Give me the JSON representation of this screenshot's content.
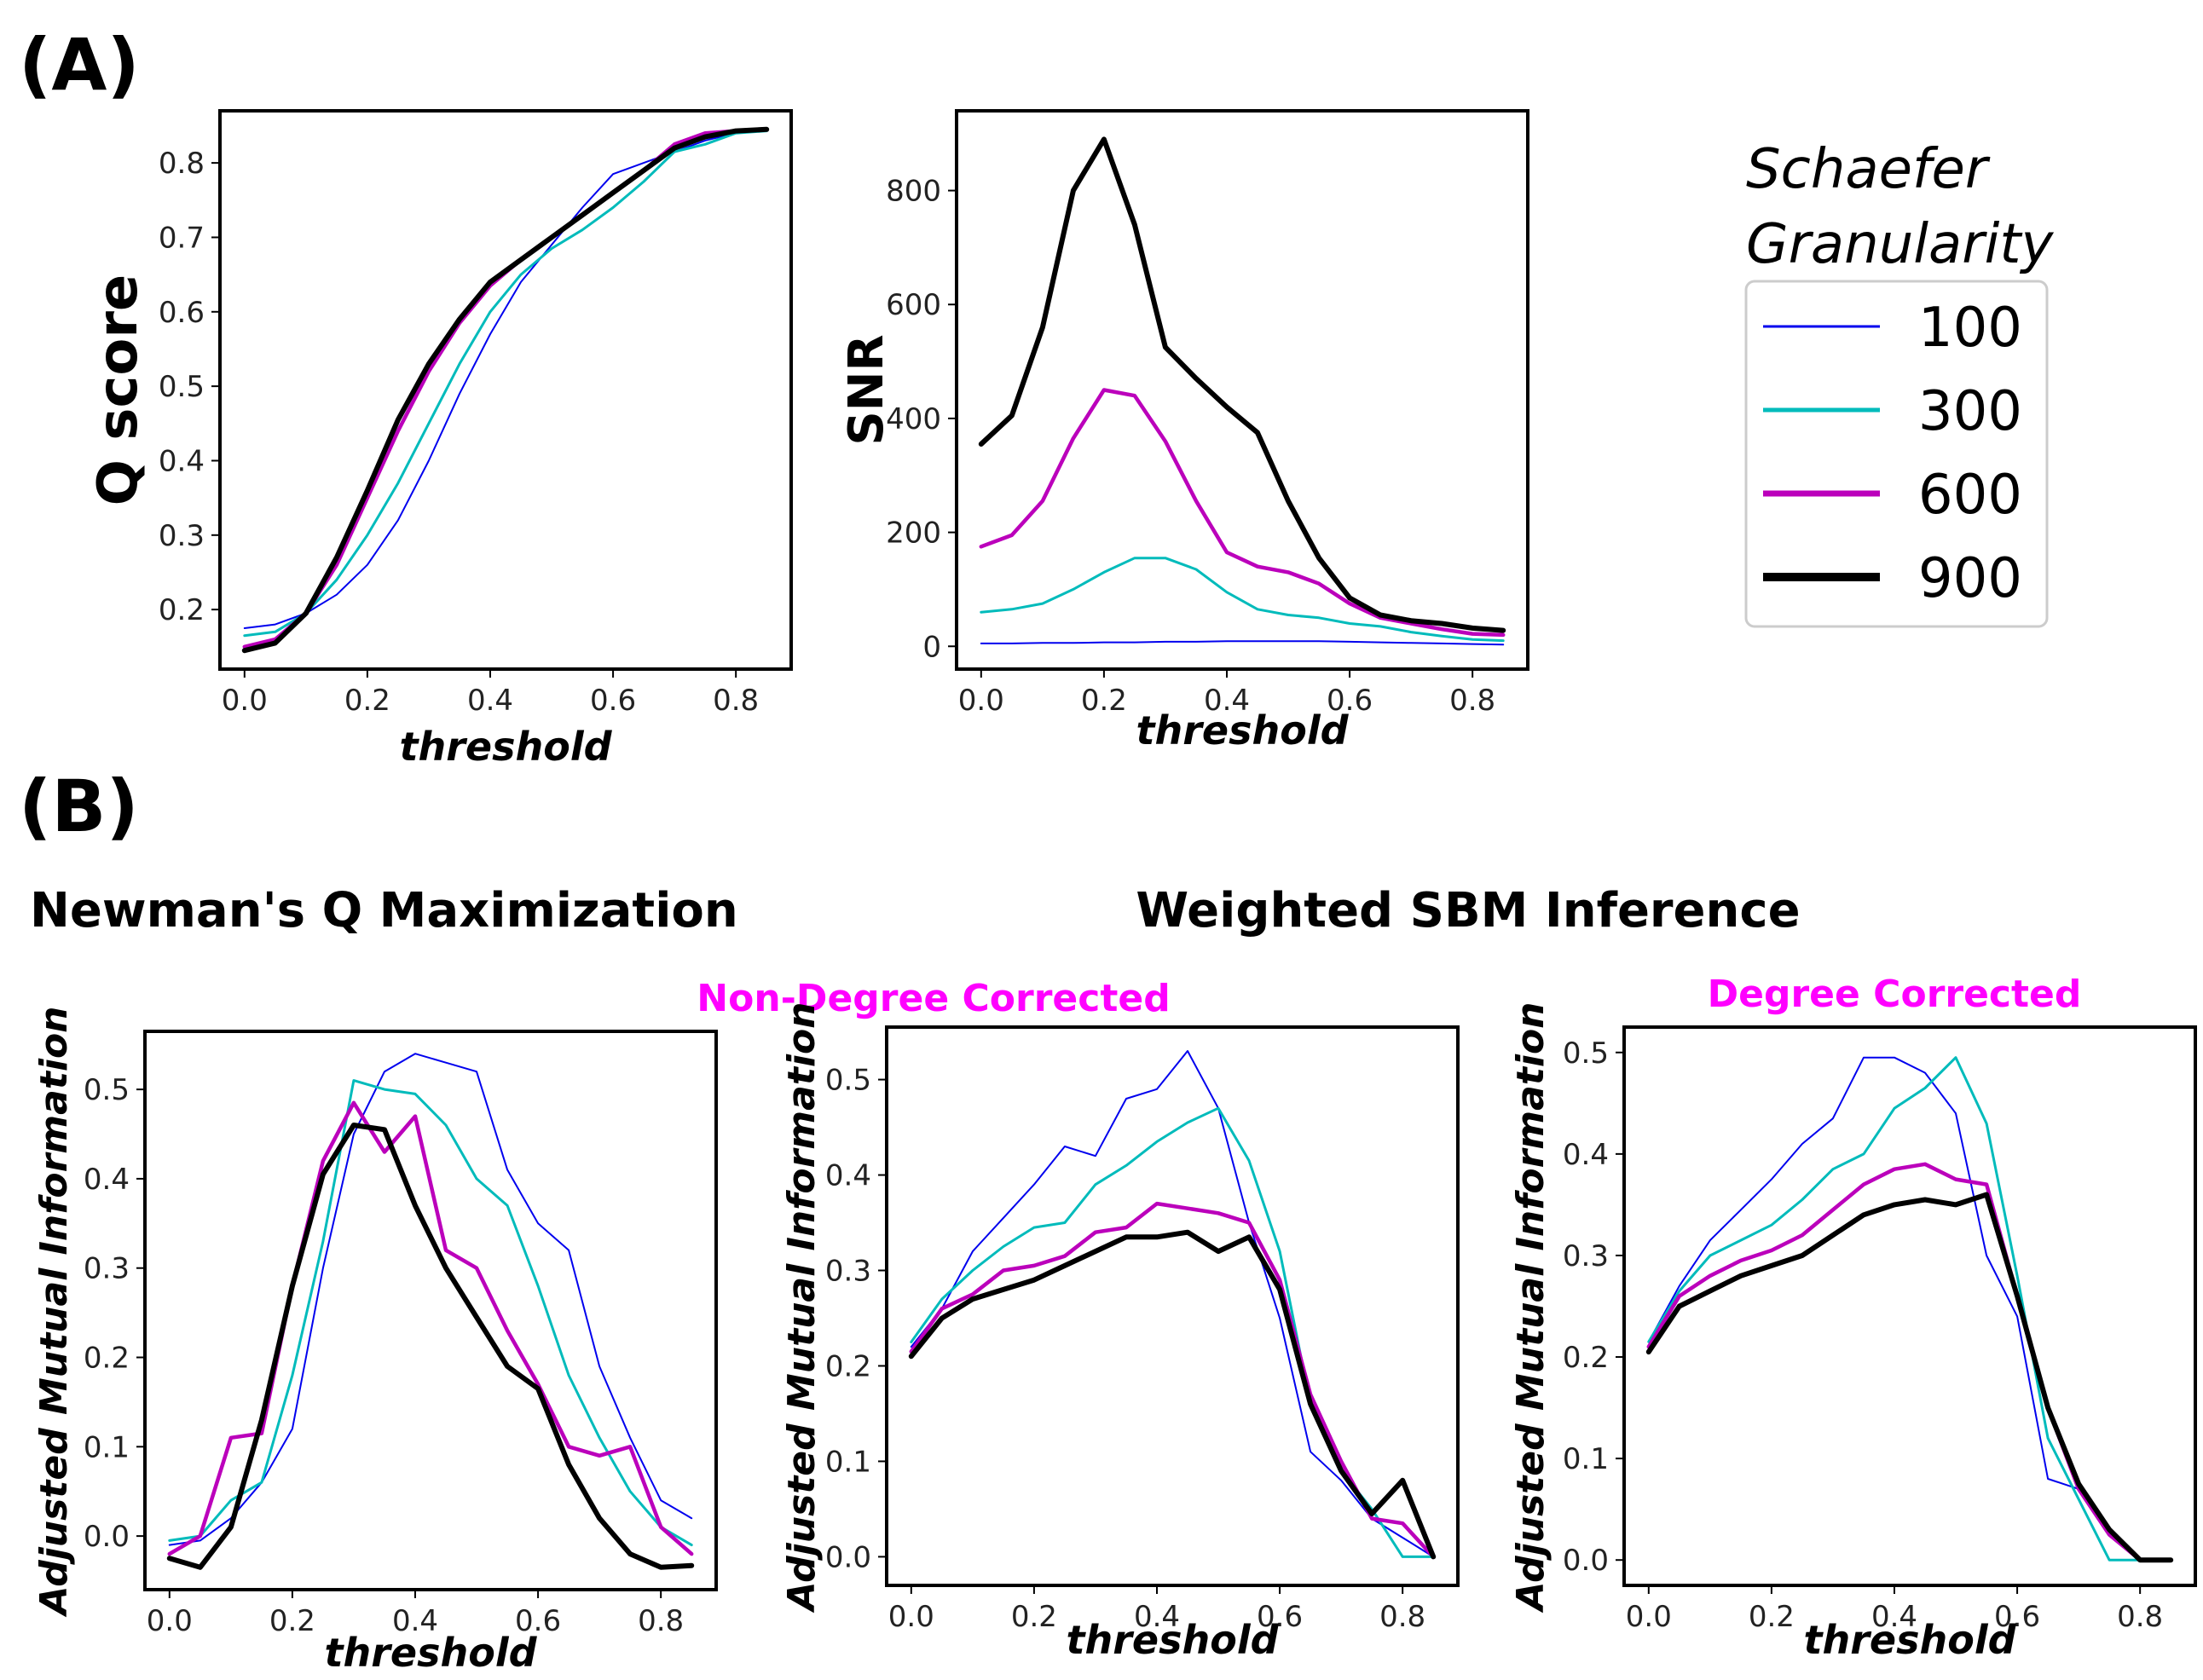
{
  "figure": {
    "label_a": "(A)",
    "label_b": "(B)",
    "title_newman": "Newman's Q Maximization",
    "title_sbm": "Weighted SBM Inference",
    "subtitle_ndc": "Non-Degree Corrected",
    "subtitle_dc": "Degree Corrected"
  },
  "legend": {
    "title_line1": "Schaefer",
    "title_line2": "Granularity",
    "entries": [
      {
        "label": "100",
        "color": "#0000ee"
      },
      {
        "label": "300",
        "color": "#00bbbb"
      },
      {
        "label": "600",
        "color": "#bb00bb"
      },
      {
        "label": "900",
        "color": "#000000"
      }
    ]
  },
  "series_colors": [
    "#0000ee",
    "#00bbbb",
    "#bb00bb",
    "#000000"
  ],
  "chart_data": [
    {
      "id": "qscore",
      "type": "line",
      "title": "",
      "xlabel": "threshold",
      "ylabel": "Q score",
      "xlim": [
        -0.04,
        0.89
      ],
      "ylim": [
        0.12,
        0.87
      ],
      "xticks": [
        0.0,
        0.2,
        0.4,
        0.6,
        0.8
      ],
      "xtick_labels": [
        "0.0",
        "0.2",
        "0.4",
        "0.6",
        "0.8"
      ],
      "yticks": [
        0.2,
        0.3,
        0.4,
        0.5,
        0.6,
        0.7,
        0.8
      ],
      "ytick_labels": [
        "0.2",
        "0.3",
        "0.4",
        "0.5",
        "0.6",
        "0.7",
        "0.8"
      ],
      "x": [
        0.0,
        0.05,
        0.1,
        0.15,
        0.2,
        0.25,
        0.3,
        0.35,
        0.4,
        0.45,
        0.5,
        0.55,
        0.6,
        0.65,
        0.7,
        0.75,
        0.8,
        0.85
      ],
      "series": [
        {
          "name": "100",
          "values": [
            0.175,
            0.18,
            0.195,
            0.22,
            0.26,
            0.32,
            0.4,
            0.49,
            0.57,
            0.64,
            0.69,
            0.74,
            0.785,
            0.8,
            0.815,
            0.83,
            0.84,
            0.843
          ]
        },
        {
          "name": "300",
          "values": [
            0.165,
            0.17,
            0.195,
            0.24,
            0.3,
            0.37,
            0.45,
            0.53,
            0.6,
            0.65,
            0.685,
            0.71,
            0.74,
            0.775,
            0.815,
            0.825,
            0.84,
            0.843
          ]
        },
        {
          "name": "600",
          "values": [
            0.15,
            0.16,
            0.195,
            0.26,
            0.35,
            0.44,
            0.52,
            0.585,
            0.635,
            0.67,
            0.7,
            0.73,
            0.76,
            0.79,
            0.825,
            0.84,
            0.843,
            0.845
          ]
        },
        {
          "name": "900",
          "values": [
            0.145,
            0.155,
            0.195,
            0.27,
            0.36,
            0.455,
            0.53,
            0.59,
            0.64,
            0.67,
            0.7,
            0.73,
            0.76,
            0.79,
            0.82,
            0.835,
            0.843,
            0.845
          ]
        }
      ]
    },
    {
      "id": "snr",
      "type": "line",
      "title": "",
      "xlabel": "threshold",
      "ylabel": "SNR",
      "xlim": [
        -0.04,
        0.89
      ],
      "ylim": [
        -40,
        940
      ],
      "xticks": [
        0.0,
        0.2,
        0.4,
        0.6,
        0.8
      ],
      "xtick_labels": [
        "0.0",
        "0.2",
        "0.4",
        "0.6",
        "0.8"
      ],
      "yticks": [
        0,
        200,
        400,
        600,
        800
      ],
      "ytick_labels": [
        "0",
        "200",
        "400",
        "600",
        "800"
      ],
      "x": [
        0.0,
        0.05,
        0.1,
        0.15,
        0.2,
        0.25,
        0.3,
        0.35,
        0.4,
        0.45,
        0.5,
        0.55,
        0.6,
        0.65,
        0.7,
        0.75,
        0.8,
        0.85
      ],
      "series": [
        {
          "name": "100",
          "values": [
            5,
            5,
            6,
            6,
            7,
            7,
            8,
            8,
            9,
            9,
            9,
            9,
            8,
            7,
            6,
            5,
            4,
            3
          ]
        },
        {
          "name": "300",
          "values": [
            60,
            65,
            75,
            100,
            130,
            155,
            155,
            135,
            95,
            65,
            55,
            50,
            40,
            35,
            25,
            18,
            12,
            10
          ]
        },
        {
          "name": "600",
          "values": [
            175,
            195,
            255,
            365,
            450,
            440,
            360,
            255,
            165,
            140,
            130,
            110,
            75,
            50,
            40,
            30,
            22,
            20
          ]
        },
        {
          "name": "900",
          "values": [
            355,
            405,
            560,
            800,
            890,
            740,
            525,
            470,
            420,
            375,
            255,
            155,
            85,
            55,
            45,
            40,
            32,
            28
          ]
        }
      ]
    },
    {
      "id": "newman",
      "type": "line",
      "title": "Newman's Q Maximization",
      "xlabel": "threshold",
      "ylabel": "Adjusted Mutual Information",
      "xlim": [
        -0.04,
        0.89
      ],
      "ylim": [
        -0.06,
        0.565
      ],
      "xticks": [
        0.0,
        0.2,
        0.4,
        0.6,
        0.8
      ],
      "xtick_labels": [
        "0.0",
        "0.2",
        "0.4",
        "0.6",
        "0.8"
      ],
      "yticks": [
        0.0,
        0.1,
        0.2,
        0.3,
        0.4,
        0.5
      ],
      "ytick_labels": [
        "0.0",
        "0.1",
        "0.2",
        "0.3",
        "0.4",
        "0.5"
      ],
      "x": [
        0.0,
        0.05,
        0.1,
        0.15,
        0.2,
        0.25,
        0.3,
        0.35,
        0.4,
        0.45,
        0.5,
        0.55,
        0.6,
        0.65,
        0.7,
        0.75,
        0.8,
        0.85
      ],
      "series": [
        {
          "name": "100",
          "values": [
            -0.01,
            -0.005,
            0.02,
            0.06,
            0.12,
            0.3,
            0.45,
            0.52,
            0.54,
            0.53,
            0.52,
            0.41,
            0.35,
            0.32,
            0.19,
            0.11,
            0.04,
            0.02
          ]
        },
        {
          "name": "300",
          "values": [
            -0.005,
            0.0,
            0.04,
            0.06,
            0.18,
            0.33,
            0.51,
            0.5,
            0.495,
            0.46,
            0.4,
            0.37,
            0.28,
            0.18,
            0.11,
            0.05,
            0.01,
            -0.01
          ]
        },
        {
          "name": "600",
          "values": [
            -0.02,
            0.0,
            0.11,
            0.115,
            0.28,
            0.42,
            0.485,
            0.43,
            0.47,
            0.32,
            0.3,
            0.23,
            0.17,
            0.1,
            0.09,
            0.1,
            0.01,
            -0.02
          ]
        },
        {
          "name": "900",
          "values": [
            -0.025,
            -0.035,
            0.01,
            0.13,
            0.28,
            0.405,
            0.46,
            0.455,
            0.37,
            0.3,
            0.245,
            0.19,
            0.165,
            0.08,
            0.02,
            -0.02,
            -0.035,
            -0.033
          ]
        }
      ]
    },
    {
      "id": "sbm_ndc",
      "type": "line",
      "title": "Non-Degree Corrected",
      "xlabel": "threshold",
      "ylabel": "Adjusted Mutual Information",
      "xlim": [
        -0.04,
        0.89
      ],
      "ylim": [
        -0.03,
        0.555
      ],
      "xticks": [
        0.0,
        0.2,
        0.4,
        0.6,
        0.8
      ],
      "xtick_labels": [
        "0.0",
        "0.2",
        "0.4",
        "0.6",
        "0.8"
      ],
      "yticks": [
        0.0,
        0.1,
        0.2,
        0.3,
        0.4,
        0.5
      ],
      "ytick_labels": [
        "0.0",
        "0.1",
        "0.2",
        "0.3",
        "0.4",
        "0.5"
      ],
      "x": [
        0.0,
        0.05,
        0.1,
        0.15,
        0.2,
        0.25,
        0.3,
        0.35,
        0.4,
        0.45,
        0.5,
        0.55,
        0.6,
        0.65,
        0.7,
        0.75,
        0.8,
        0.85
      ],
      "series": [
        {
          "name": "100",
          "values": [
            0.22,
            0.26,
            0.32,
            0.355,
            0.39,
            0.43,
            0.42,
            0.48,
            0.49,
            0.53,
            0.47,
            0.35,
            0.25,
            0.11,
            0.08,
            0.04,
            0.02,
            0.0
          ]
        },
        {
          "name": "300",
          "values": [
            0.225,
            0.27,
            0.3,
            0.325,
            0.345,
            0.35,
            0.39,
            0.41,
            0.435,
            0.455,
            0.47,
            0.415,
            0.32,
            0.16,
            0.09,
            0.05,
            0.0,
            0.0
          ]
        },
        {
          "name": "600",
          "values": [
            0.215,
            0.26,
            0.275,
            0.3,
            0.305,
            0.315,
            0.34,
            0.345,
            0.37,
            0.365,
            0.36,
            0.35,
            0.29,
            0.17,
            0.1,
            0.04,
            0.035,
            0.0
          ]
        },
        {
          "name": "900",
          "values": [
            0.21,
            0.25,
            0.27,
            0.28,
            0.29,
            0.305,
            0.32,
            0.335,
            0.335,
            0.34,
            0.32,
            0.335,
            0.28,
            0.16,
            0.09,
            0.045,
            0.08,
            0.0
          ]
        }
      ]
    },
    {
      "id": "sbm_dc",
      "type": "line",
      "title": "Degree Corrected",
      "xlabel": "threshold",
      "ylabel": "Adjusted Mutual Information",
      "xlim": [
        -0.04,
        0.89
      ],
      "ylim": [
        -0.025,
        0.525
      ],
      "xticks": [
        0.0,
        0.2,
        0.4,
        0.6,
        0.8
      ],
      "xtick_labels": [
        "0.0",
        "0.2",
        "0.4",
        "0.6",
        "0.8"
      ],
      "yticks": [
        0.0,
        0.1,
        0.2,
        0.3,
        0.4,
        0.5
      ],
      "ytick_labels": [
        "0.0",
        "0.1",
        "0.2",
        "0.3",
        "0.4",
        "0.5"
      ],
      "x": [
        0.0,
        0.05,
        0.1,
        0.15,
        0.2,
        0.25,
        0.3,
        0.35,
        0.4,
        0.45,
        0.5,
        0.55,
        0.6,
        0.65,
        0.7,
        0.75,
        0.8,
        0.85
      ],
      "series": [
        {
          "name": "100",
          "values": [
            0.215,
            0.27,
            0.315,
            0.345,
            0.375,
            0.41,
            0.435,
            0.495,
            0.495,
            0.48,
            0.44,
            0.3,
            0.24,
            0.08,
            0.07,
            0.025,
            0.0,
            0.0
          ]
        },
        {
          "name": "300",
          "values": [
            0.215,
            0.265,
            0.3,
            0.315,
            0.33,
            0.355,
            0.385,
            0.4,
            0.445,
            0.465,
            0.495,
            0.43,
            0.28,
            0.12,
            0.06,
            0.0,
            0.0,
            0.0
          ]
        },
        {
          "name": "600",
          "values": [
            0.21,
            0.26,
            0.28,
            0.295,
            0.305,
            0.32,
            0.345,
            0.37,
            0.385,
            0.39,
            0.375,
            0.37,
            0.26,
            0.15,
            0.07,
            0.025,
            0.0,
            0.0
          ]
        },
        {
          "name": "900",
          "values": [
            0.205,
            0.25,
            0.265,
            0.28,
            0.29,
            0.3,
            0.32,
            0.34,
            0.35,
            0.355,
            0.35,
            0.36,
            0.26,
            0.15,
            0.075,
            0.03,
            0.0,
            0.0
          ]
        }
      ]
    }
  ]
}
